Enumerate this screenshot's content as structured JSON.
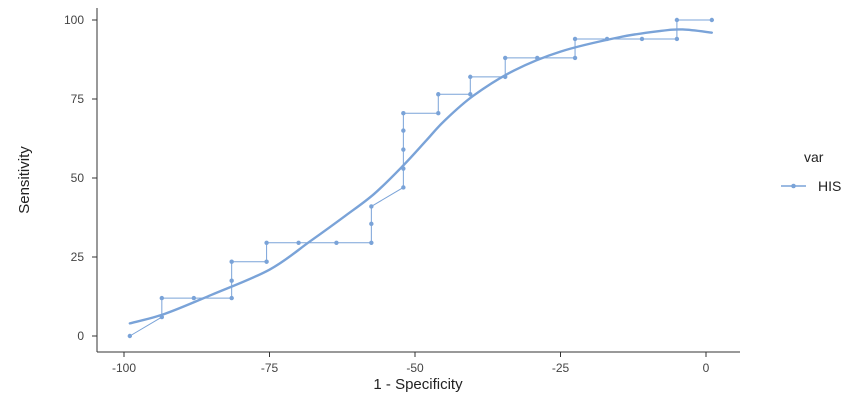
{
  "chart_data": {
    "type": "line",
    "xlabel": "1 - Specificity",
    "ylabel": "Sensitivity",
    "xlim": [
      -101,
      5
    ],
    "ylim": [
      -5,
      102
    ],
    "x_ticks": [
      -100,
      -75,
      -50,
      -25,
      0
    ],
    "x_tick_labels": [
      "-100",
      "-75",
      "-50",
      "-25",
      "0"
    ],
    "y_ticks": [
      0,
      25,
      50,
      75,
      100
    ],
    "y_tick_labels": [
      "0",
      "25",
      "50",
      "75",
      "100"
    ],
    "grid": false,
    "legend": {
      "title": "var",
      "position": "right",
      "entries": [
        "HIS"
      ]
    },
    "color": "#7aa3d8",
    "series": [
      {
        "name": "HIS",
        "points": [
          [
            -99,
            0
          ],
          [
            -93.5,
            6
          ],
          [
            -93.5,
            12
          ],
          [
            -88,
            12
          ],
          [
            -81.5,
            12
          ],
          [
            -81.5,
            17.5
          ],
          [
            -81.5,
            23.5
          ],
          [
            -75.5,
            23.5
          ],
          [
            -75.5,
            29.5
          ],
          [
            -70,
            29.5
          ],
          [
            -63.5,
            29.5
          ],
          [
            -57.5,
            29.5
          ],
          [
            -57.5,
            35.5
          ],
          [
            -57.5,
            41
          ],
          [
            -52,
            47
          ],
          [
            -52,
            53
          ],
          [
            -52,
            59
          ],
          [
            -52,
            65
          ],
          [
            -52,
            70.5
          ],
          [
            -46,
            70.5
          ],
          [
            -46,
            76.5
          ],
          [
            -40.5,
            76.5
          ],
          [
            -40.5,
            82
          ],
          [
            -34.5,
            82
          ],
          [
            -34.5,
            88
          ],
          [
            -29,
            88
          ],
          [
            -22.5,
            88
          ],
          [
            -22.5,
            94
          ],
          [
            -17,
            94
          ],
          [
            -11,
            94
          ],
          [
            -5,
            94
          ],
          [
            -5,
            100
          ],
          [
            1,
            100
          ]
        ]
      }
    ],
    "smooth_fit": [
      [
        -99,
        4
      ],
      [
        -93,
        7
      ],
      [
        -85,
        13
      ],
      [
        -75,
        21
      ],
      [
        -68,
        30
      ],
      [
        -62,
        38
      ],
      [
        -57,
        45
      ],
      [
        -52,
        54
      ],
      [
        -48,
        62
      ],
      [
        -45,
        68
      ],
      [
        -40,
        76
      ],
      [
        -33,
        84
      ],
      [
        -25,
        90
      ],
      [
        -15,
        94.5
      ],
      [
        -8,
        96.5
      ],
      [
        -4,
        97
      ],
      [
        1,
        96
      ]
    ]
  }
}
